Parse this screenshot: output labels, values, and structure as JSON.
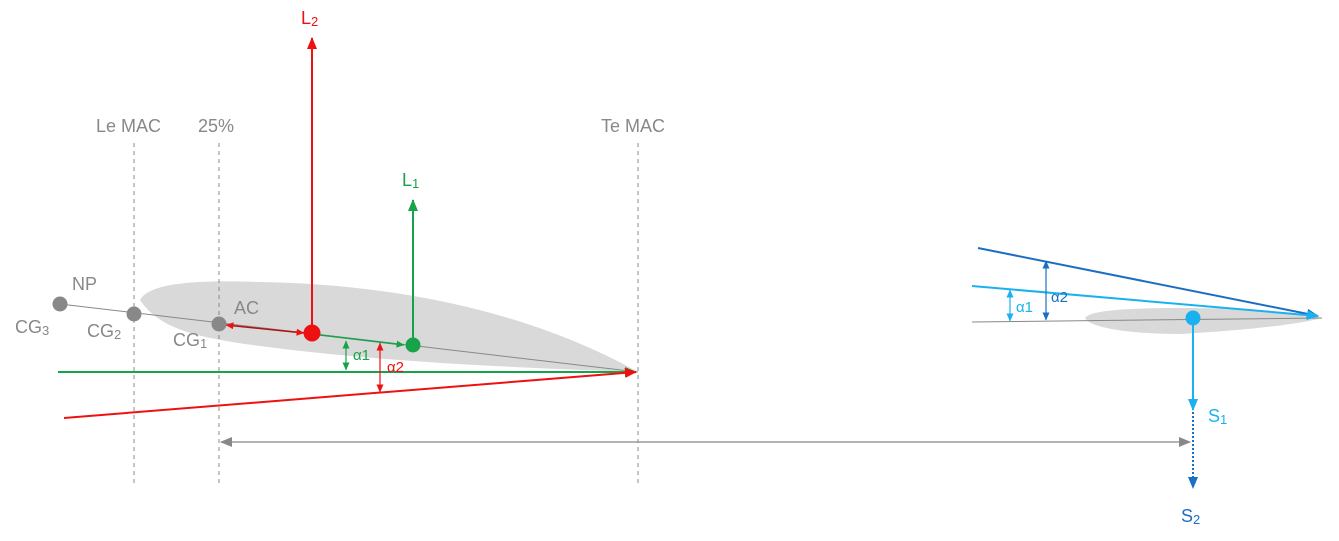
{
  "colors": {
    "gray": "#888888",
    "light_gray": "#d9d9d9",
    "red": "#ee1111",
    "green": "#17a34a",
    "dark_blue": "#1a6fc4",
    "light_blue": "#1ab1f0"
  },
  "labels": {
    "le_mac": "Le MAC",
    "quarter": "25%",
    "te_mac": "Te MAC",
    "np": "NP",
    "ac": "AC",
    "cg3": {
      "main": "CG",
      "sub": "3"
    },
    "cg2": {
      "main": "CG",
      "sub": "2"
    },
    "cg1": {
      "main": "CG",
      "sub": "1"
    },
    "l1": {
      "main": "L",
      "sub": "1"
    },
    "l2": {
      "main": "L",
      "sub": "2"
    },
    "s1": {
      "main": "S",
      "sub": "1"
    },
    "s2": {
      "main": "S",
      "sub": "2"
    },
    "wing_alpha1": "α1",
    "wing_alpha2": "α2",
    "tail_alpha1": "α1",
    "tail_alpha2": "α2"
  }
}
